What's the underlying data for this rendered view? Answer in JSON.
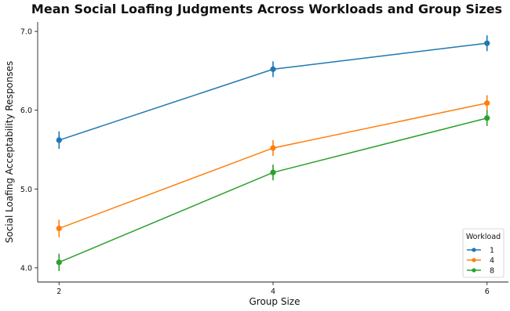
{
  "chart_data": {
    "type": "line",
    "title": "Mean Social Loafing Judgments Across Workloads and Group Sizes",
    "xlabel": "Group Size",
    "ylabel": "Social Loafing Acceptability Responses",
    "x": [
      2,
      4,
      6
    ],
    "x_tick_labels": [
      "2",
      "4",
      "6"
    ],
    "y_ticks": [
      4.0,
      5.0,
      6.0,
      7.0
    ],
    "y_tick_labels": [
      "4.0",
      "5.0",
      "6.0",
      "7.0"
    ],
    "ylim": [
      3.82,
      7.12
    ],
    "grid": false,
    "legend": {
      "title": "Workload",
      "position": "bottom-right"
    },
    "series": [
      {
        "name": "1",
        "color": "#1f77b4",
        "values": [
          5.62,
          6.52,
          6.85
        ],
        "err": [
          0.11,
          0.1,
          0.1
        ]
      },
      {
        "name": "4",
        "color": "#ff7f0e",
        "values": [
          4.5,
          5.52,
          6.09
        ],
        "err": [
          0.11,
          0.1,
          0.1
        ]
      },
      {
        "name": "8",
        "color": "#2ca02c",
        "values": [
          4.07,
          5.21,
          5.9
        ],
        "err": [
          0.11,
          0.1,
          0.1
        ]
      }
    ]
  }
}
